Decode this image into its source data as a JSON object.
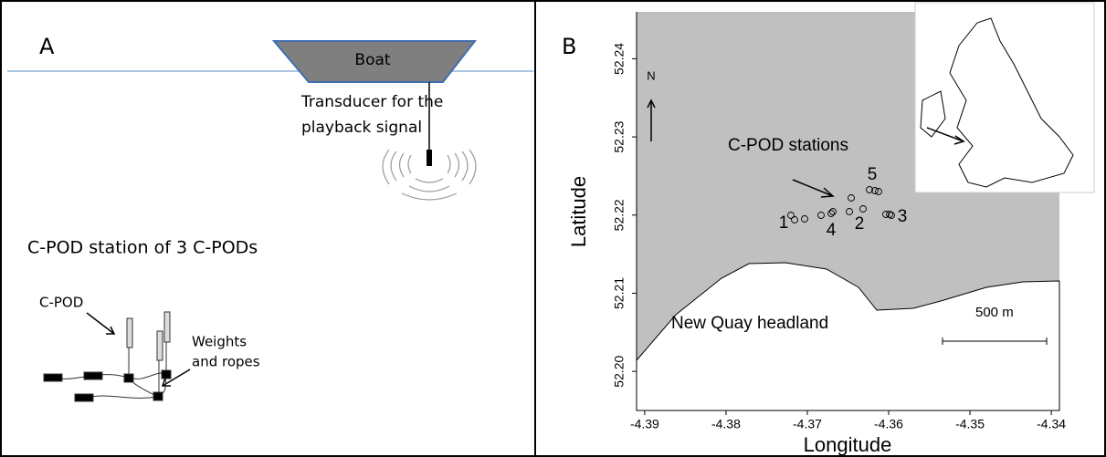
{
  "panel_a": {
    "letter": "A",
    "boat": "Boat",
    "transducer": [
      "Transducer for the",
      "playback signal"
    ],
    "station": "C-POD station of 3 C-PODs",
    "cpod": "C-POD",
    "weights": [
      "Weights",
      "and ropes"
    ]
  },
  "panel_b": {
    "letter": "B",
    "north": "N",
    "stations_label": "C-POD stations",
    "headland": "New Quay headland",
    "scale": "500 m",
    "xlabel": "Longitude",
    "ylabel": "Latitude",
    "station_numbers": [
      "1",
      "2",
      "3",
      "4",
      "5"
    ],
    "xlim": [
      -4.391,
      -4.339
    ],
    "ylim": [
      52.195,
      52.246
    ],
    "xticks": [
      -4.39,
      -4.38,
      -4.37,
      -4.36,
      -4.35,
      -4.34
    ],
    "yticks": [
      {
        "value": 52.2,
        "label": "52.20"
      },
      52.21,
      52.22,
      52.23,
      52.24
    ]
  }
}
